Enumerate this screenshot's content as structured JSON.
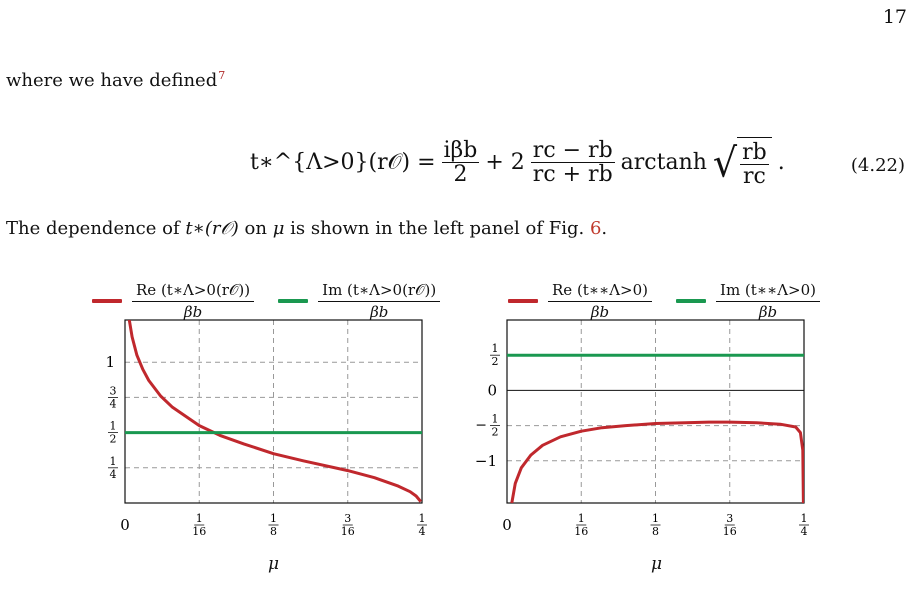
{
  "page": {
    "number": "17",
    "intro_text": "where we have defined",
    "footnote_mark": "7",
    "equation_label": "(4.22)",
    "after_text_a": "The dependence of ",
    "after_text_math": "t∗(r𝒪)",
    "after_text_b": " on ",
    "after_text_mu": "μ",
    "after_text_c": " is shown in the left panel of Fig. ",
    "fig_ref": "6",
    "after_text_d": "."
  },
  "equation": {
    "lhs": "t∗^{Λ>0}(r𝒪) =",
    "term1_num": "iβb",
    "term1_den": "2",
    "plus": "+ 2",
    "term2_num": "rc − rb",
    "term2_den": "rc + rb",
    "func": "arctanh",
    "sqrt_num": "rb",
    "sqrt_den": "rc",
    "end": "."
  },
  "chart_data": [
    {
      "type": "line",
      "xlabel": "μ",
      "x_ticks": [
        "0",
        "1/16",
        "1/8",
        "3/16",
        "1/4"
      ],
      "y_ticks": [
        "1/4",
        "1/2",
        "3/4",
        "1"
      ],
      "xlim": [
        0,
        0.25
      ],
      "ylim": [
        0,
        1.3
      ],
      "grid": true,
      "legend_position": "top",
      "colors": {
        "re": "#c0282d",
        "im": "#1a9850"
      },
      "series": [
        {
          "name": "Re(t∗^{Λ>0}(r𝒪)) / βb",
          "legend_num": "Re (t∗Λ>0(r𝒪))",
          "legend_den": "βb",
          "x": [
            0.003,
            0.006,
            0.01,
            0.015,
            0.02,
            0.03,
            0.04,
            0.0625,
            0.08,
            0.1,
            0.125,
            0.15,
            0.1875,
            0.21,
            0.23,
            0.24,
            0.245,
            0.249
          ],
          "y": [
            1.33,
            1.18,
            1.05,
            0.95,
            0.87,
            0.76,
            0.68,
            0.55,
            0.48,
            0.42,
            0.35,
            0.3,
            0.23,
            0.18,
            0.12,
            0.08,
            0.05,
            0.01
          ]
        },
        {
          "name": "Im(t∗^{Λ>0}(r𝒪)) / βb",
          "legend_num": "Im (t∗Λ>0(r𝒪))",
          "legend_den": "βb",
          "x": [
            0,
            0.25
          ],
          "y": [
            0.5,
            0.5
          ]
        }
      ]
    },
    {
      "type": "line",
      "xlabel": "μ",
      "x_ticks": [
        "0",
        "1/16",
        "1/8",
        "3/16",
        "1/4"
      ],
      "y_ticks": [
        "−1",
        "−1/2",
        "0",
        "1/2"
      ],
      "xlim": [
        0,
        0.25
      ],
      "ylim": [
        -1.6,
        1.0
      ],
      "grid": true,
      "legend_position": "top",
      "colors": {
        "re": "#c0282d",
        "im": "#1a9850"
      },
      "series": [
        {
          "name": "Re(t∗∗^{Λ>0}) / βb",
          "legend_num": "Re (t∗∗Λ>0)",
          "legend_den": "βb",
          "x": [
            0.004,
            0.007,
            0.012,
            0.02,
            0.03,
            0.045,
            0.0625,
            0.08,
            0.1,
            0.125,
            0.15,
            0.17,
            0.1875,
            0.21,
            0.23,
            0.243,
            0.247,
            0.249,
            0.2495
          ],
          "y": [
            -1.6,
            -1.32,
            -1.1,
            -0.92,
            -0.78,
            -0.66,
            -0.58,
            -0.53,
            -0.5,
            -0.47,
            -0.46,
            -0.45,
            -0.45,
            -0.46,
            -0.48,
            -0.52,
            -0.6,
            -0.85,
            -1.6
          ]
        },
        {
          "name": "Im(t∗∗^{Λ>0}) / βb",
          "legend_num": "Im (t∗∗Λ>0)",
          "legend_den": "βb",
          "x": [
            0,
            0.25
          ],
          "y": [
            0.5,
            0.5
          ]
        }
      ]
    }
  ]
}
